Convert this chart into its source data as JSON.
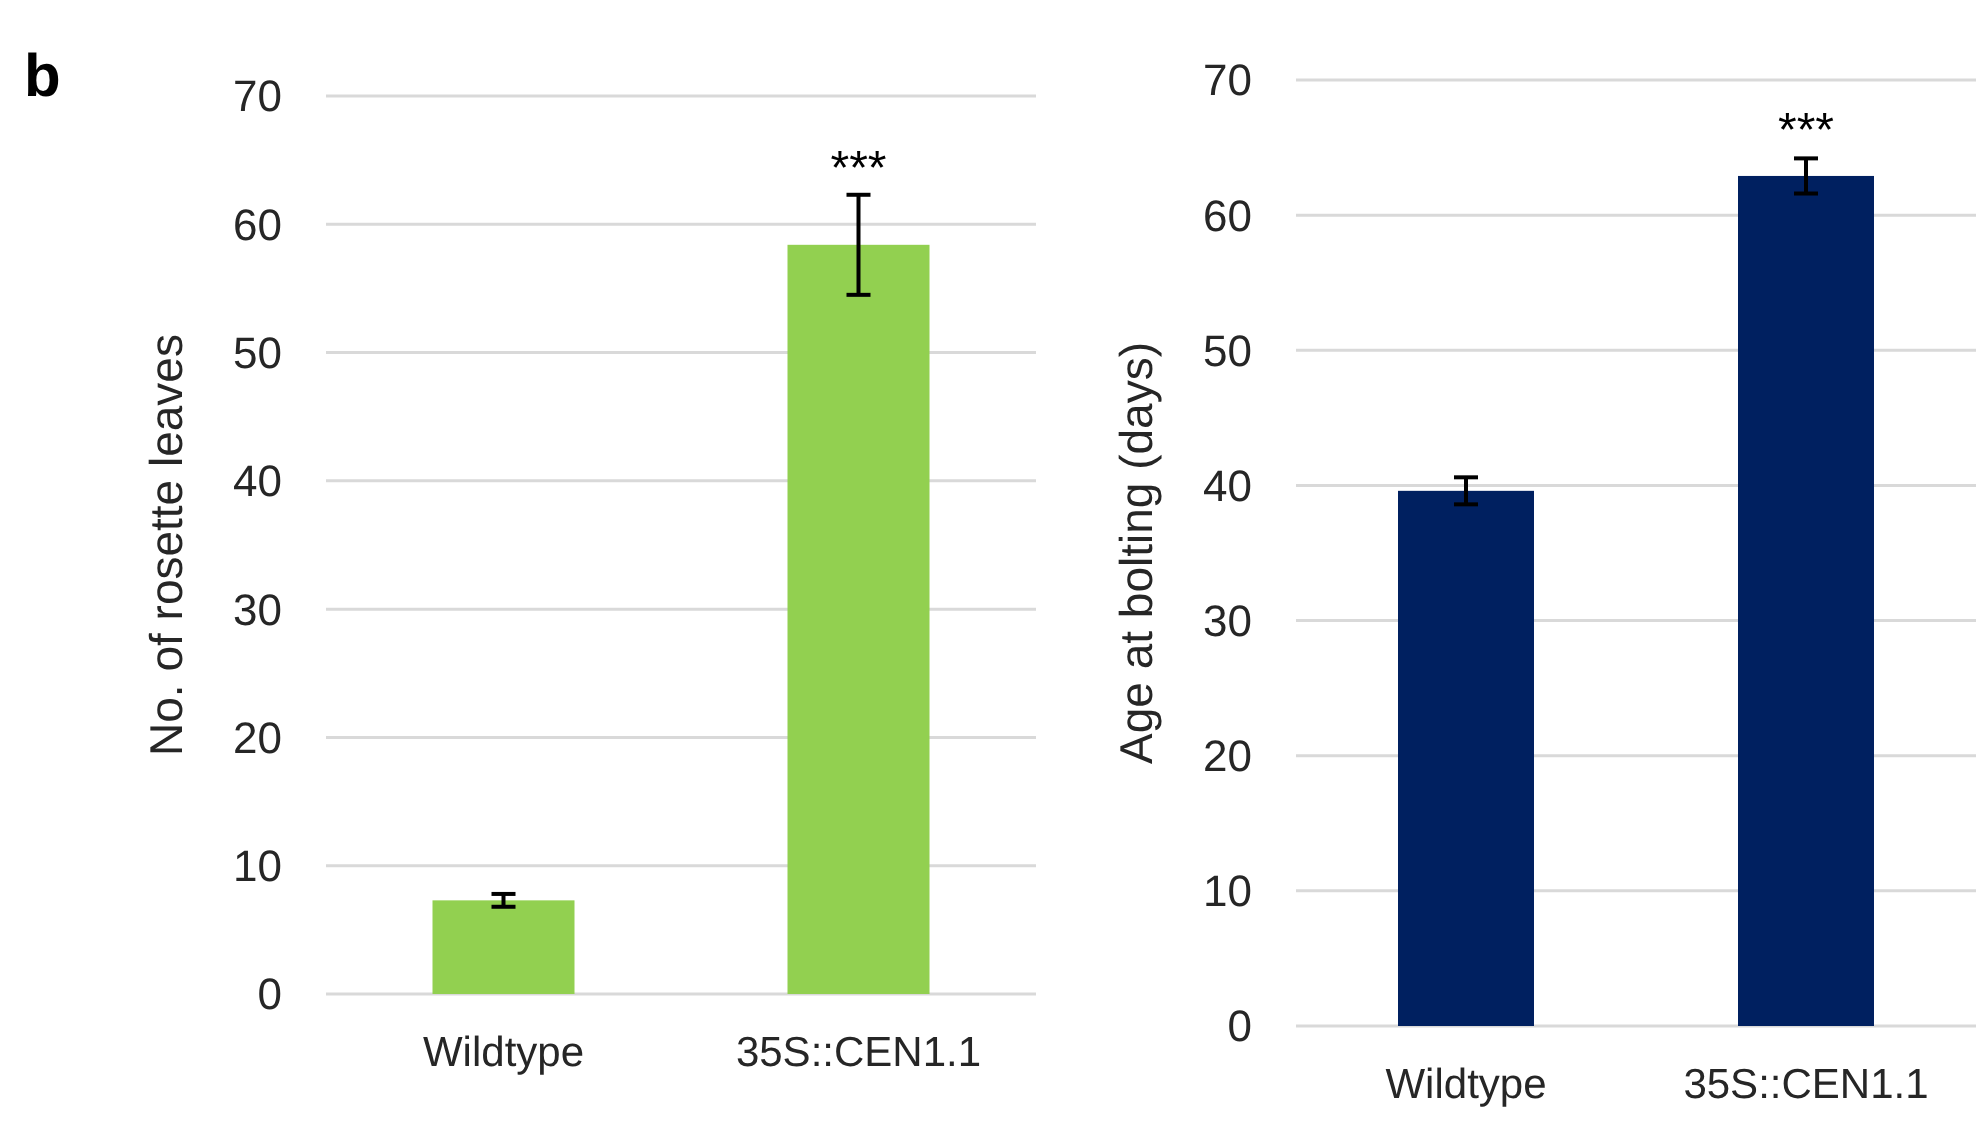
{
  "chart_data": [
    {
      "type": "bar",
      "ylabel": "No. of rosette leaves",
      "categories": [
        "Wildtype",
        "35S::CEN1.1"
      ],
      "values": [
        7.3,
        58.4
      ],
      "errors": [
        0.5,
        3.9
      ],
      "color": "#92d050",
      "ylim": [
        0,
        70
      ],
      "yticks": [
        0,
        10,
        20,
        30,
        40,
        50,
        60,
        70
      ],
      "grid": "y",
      "annotations": [
        "b",
        {
          "text": "***",
          "x": "35S::CEN1.1",
          "y": 62.2
        }
      ]
    },
    {
      "type": "bar",
      "ylabel": "Age at bolting (days)",
      "categories": [
        "Wildtype",
        "35S::CEN1.1"
      ],
      "values": [
        39.6,
        62.9
      ],
      "errors": [
        1.0,
        1.3
      ],
      "color": "#002060",
      "ylim": [
        0,
        70
      ],
      "yticks": [
        0,
        10,
        20,
        30,
        40,
        50,
        60,
        70
      ],
      "grid": "y",
      "annotations": [
        {
          "text": "***",
          "x": "35S::CEN1.1",
          "y": 64.2
        }
      ]
    }
  ]
}
